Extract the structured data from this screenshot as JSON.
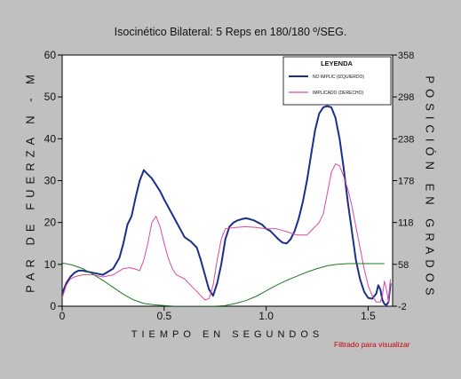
{
  "chart_data": {
    "type": "line",
    "title": "Isocinético Bilateral: 5 Reps  en 180/180 º/SEG.",
    "xlabel": "TIEMPO EN SEGUNDOS",
    "ylabel": "PAR DE FUERZA N - M",
    "ylabel_right": "POSICIÓN EN GRADOS",
    "footnote": "Filtrado para visualizar",
    "xlim": [
      0,
      1.62
    ],
    "ylim": [
      0,
      60
    ],
    "ylim_right": [
      -2,
      358
    ],
    "x_ticks": [
      "0",
      "0.5",
      "1.0",
      "1.5"
    ],
    "x_tick_values": [
      0,
      0.5,
      1.0,
      1.5
    ],
    "y_ticks": [
      "0",
      "10",
      "20",
      "30",
      "40",
      "50",
      "60"
    ],
    "y_tick_values": [
      0,
      10,
      20,
      30,
      40,
      50,
      60
    ],
    "y_ticks_right": [
      "358",
      "298",
      "238",
      "178",
      "118",
      "58",
      "-2"
    ],
    "y_tick_values_right": [
      358,
      298,
      238,
      178,
      118,
      58,
      -2
    ],
    "grid": false,
    "legend": {
      "title": "LEYENDA",
      "position": "top-right",
      "entries": [
        "NO IMPLIC (IZQUIERDO)",
        "IMPLICADO (DERECHO)"
      ]
    },
    "series": [
      {
        "name": "NO IMPLIC (IZQUIERDO)",
        "color": "#1a2e8c",
        "x": [
          0.0,
          0.02,
          0.04,
          0.06,
          0.08,
          0.1,
          0.15,
          0.2,
          0.25,
          0.28,
          0.3,
          0.32,
          0.34,
          0.36,
          0.38,
          0.4,
          0.42,
          0.44,
          0.46,
          0.48,
          0.5,
          0.55,
          0.6,
          0.63,
          0.66,
          0.68,
          0.7,
          0.72,
          0.74,
          0.76,
          0.78,
          0.8,
          0.82,
          0.84,
          0.86,
          0.88,
          0.9,
          0.92,
          0.94,
          0.96,
          0.98,
          1.0,
          1.02,
          1.04,
          1.06,
          1.08,
          1.1,
          1.12,
          1.14,
          1.16,
          1.18,
          1.2,
          1.22,
          1.24,
          1.26,
          1.28,
          1.3,
          1.32,
          1.34,
          1.36,
          1.38,
          1.4,
          1.42,
          1.44,
          1.46,
          1.48,
          1.5,
          1.52,
          1.54,
          1.55,
          1.56,
          1.57,
          1.58,
          1.59,
          1.6,
          1.61
        ],
        "values": [
          3.0,
          5.5,
          7.0,
          8.0,
          8.5,
          8.5,
          8.0,
          7.5,
          9.0,
          11.5,
          15.0,
          19.5,
          21.5,
          26.0,
          30.0,
          32.5,
          31.5,
          30.5,
          29.0,
          27.5,
          25.5,
          21.0,
          16.5,
          15.5,
          14.0,
          11.0,
          7.5,
          4.0,
          2.5,
          5.5,
          10.0,
          16.0,
          19.0,
          20.0,
          20.5,
          20.8,
          21.0,
          20.8,
          20.5,
          20.0,
          19.5,
          18.5,
          18.0,
          17.0,
          16.0,
          15.2,
          15.0,
          16.0,
          18.0,
          21.0,
          25.0,
          30.0,
          36.0,
          42.0,
          46.0,
          47.5,
          47.8,
          47.5,
          45.0,
          40.0,
          33.0,
          25.0,
          18.0,
          11.0,
          6.5,
          3.5,
          2.0,
          1.8,
          3.0,
          5.0,
          4.0,
          1.5,
          0.5,
          0.3,
          1.0,
          5.5
        ]
      },
      {
        "name": "IMPLICADO (DERECHO)",
        "color": "#d94aa0",
        "x": [
          0.0,
          0.02,
          0.04,
          0.06,
          0.08,
          0.1,
          0.15,
          0.2,
          0.25,
          0.3,
          0.33,
          0.35,
          0.38,
          0.4,
          0.42,
          0.44,
          0.46,
          0.48,
          0.5,
          0.52,
          0.54,
          0.56,
          0.6,
          0.64,
          0.68,
          0.7,
          0.72,
          0.74,
          0.76,
          0.78,
          0.8,
          0.85,
          0.9,
          0.95,
          1.0,
          1.05,
          1.1,
          1.15,
          1.2,
          1.22,
          1.24,
          1.26,
          1.28,
          1.3,
          1.32,
          1.34,
          1.36,
          1.38,
          1.4,
          1.42,
          1.44,
          1.46,
          1.48,
          1.5,
          1.52,
          1.54,
          1.56,
          1.57,
          1.58,
          1.59,
          1.6,
          1.61
        ],
        "values": [
          2.0,
          5.0,
          6.5,
          7.0,
          7.3,
          7.5,
          7.5,
          7.0,
          7.5,
          9.0,
          9.2,
          9.0,
          8.5,
          11.0,
          15.0,
          20.0,
          21.5,
          19.0,
          15.0,
          11.5,
          9.0,
          7.5,
          6.5,
          4.5,
          2.5,
          1.5,
          1.8,
          5.0,
          11.0,
          16.0,
          18.5,
          18.8,
          19.0,
          18.8,
          18.5,
          18.5,
          17.8,
          17.0,
          17.0,
          18.0,
          19.0,
          20.0,
          22.0,
          27.0,
          32.0,
          34.0,
          33.5,
          31.0,
          28.0,
          24.0,
          19.0,
          14.0,
          9.0,
          5.0,
          2.5,
          1.0,
          1.0,
          2.5,
          6.0,
          4.0,
          1.0,
          6.5
        ]
      },
      {
        "name": "",
        "color": "#1f7a1f",
        "axis": "right",
        "x": [
          0.0,
          0.05,
          0.1,
          0.15,
          0.2,
          0.25,
          0.3,
          0.35,
          0.4,
          0.45,
          0.5,
          0.55,
          0.6,
          0.65,
          0.7,
          0.75,
          0.8,
          0.85,
          0.9,
          0.95,
          1.0,
          1.05,
          1.1,
          1.15,
          1.2,
          1.25,
          1.3,
          1.35,
          1.4,
          1.45,
          1.5,
          1.55,
          1.58
        ],
        "values": [
          60,
          57,
          52,
          44,
          35,
          25,
          15,
          7,
          2,
          0,
          -1,
          -2,
          -2,
          -2,
          -2,
          -2,
          -1,
          2,
          6,
          12,
          20,
          28,
          35,
          41,
          47,
          52,
          56,
          58,
          59,
          59,
          59,
          59,
          59
        ]
      }
    ]
  }
}
